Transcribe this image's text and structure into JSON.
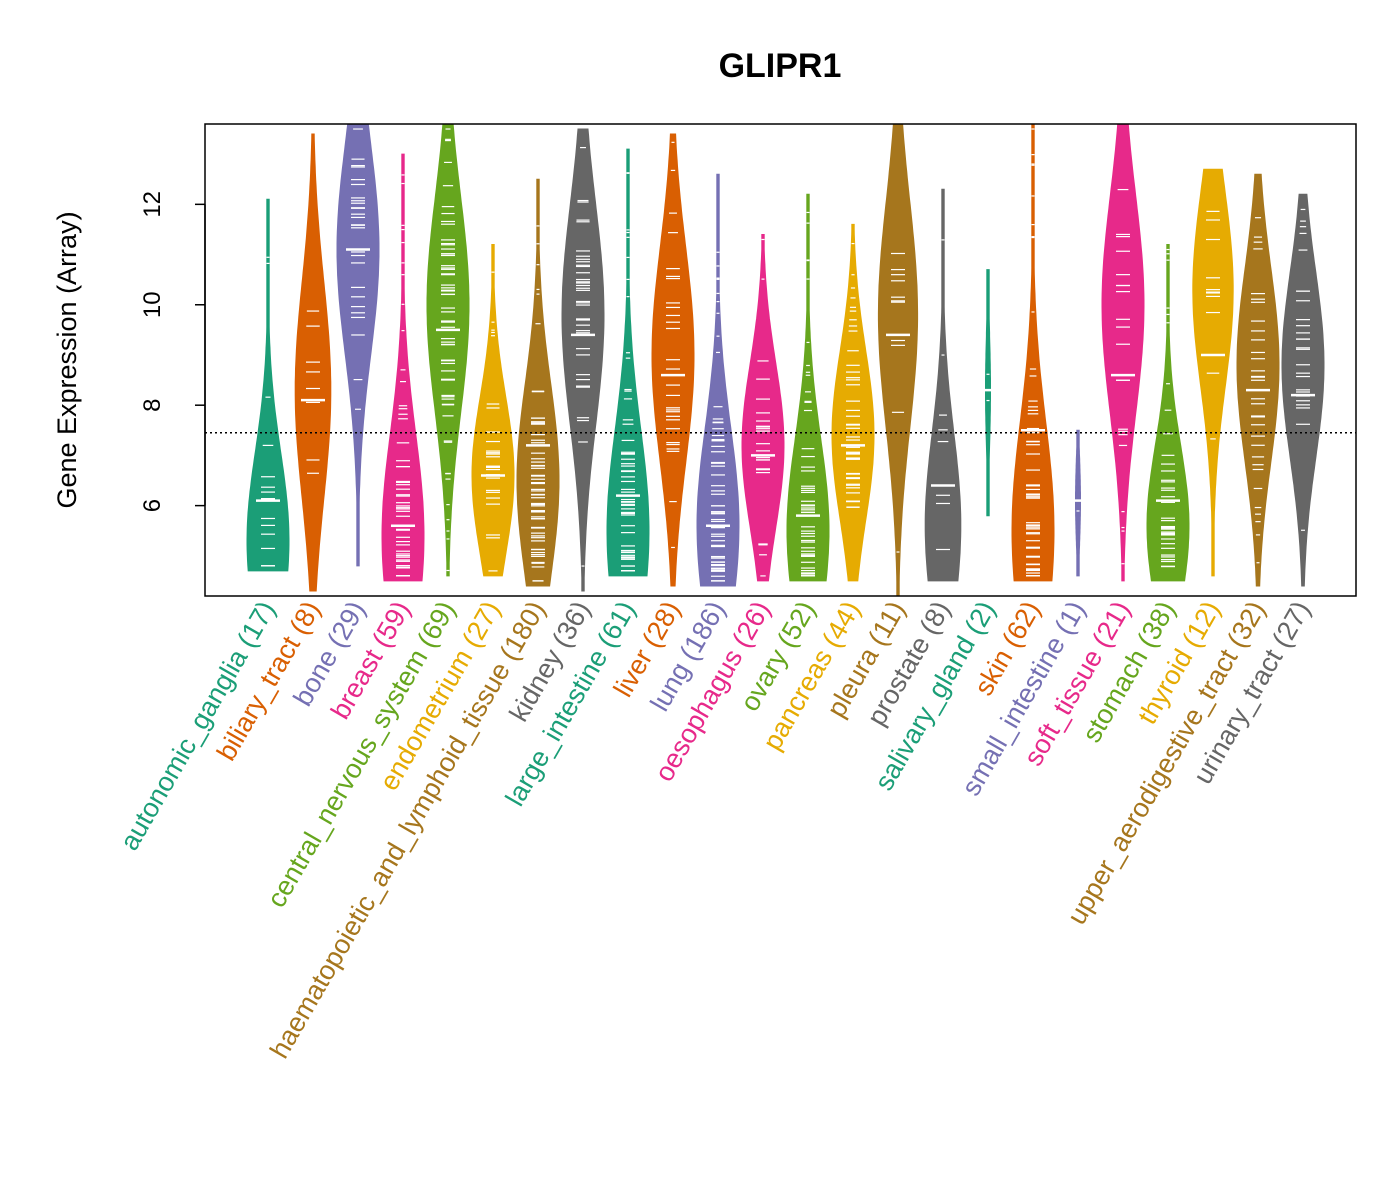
{
  "chart_data": {
    "type": "violin",
    "title": "GLIPR1",
    "xlabel": "",
    "ylabel": "Gene Expression (Array)",
    "ylim": [
      4.2,
      13.6
    ],
    "yticks": [
      6,
      8,
      10,
      12
    ],
    "reference_line": 7.45,
    "categories": [
      {
        "name": "autonomic_ganglia",
        "n": 17,
        "label": "autonomic_ganglia (17)",
        "color": "#1b9e77",
        "min": 4.7,
        "max": 12.1,
        "median": 6.1,
        "mode": 5.3
      },
      {
        "name": "biliary_tract",
        "n": 8,
        "label": "biliary_tract (8)",
        "color": "#d95f02",
        "min": 4.3,
        "max": 13.4,
        "median": 8.1,
        "mode": 8.3
      },
      {
        "name": "bone",
        "n": 29,
        "label": "bone (29)",
        "color": "#7570b3",
        "min": 4.8,
        "max": 13.6,
        "median": 11.1,
        "mode": 11.1
      },
      {
        "name": "breast",
        "n": 59,
        "label": "breast (59)",
        "color": "#e7298a",
        "min": 4.5,
        "max": 13.0,
        "median": 5.6,
        "mode": 5.4
      },
      {
        "name": "central_nervous_system",
        "n": 69,
        "label": "central_nervous_system (69)",
        "color": "#66a61e",
        "min": 4.6,
        "max": 13.6,
        "median": 9.5,
        "mode": 10.0
      },
      {
        "name": "endometrium",
        "n": 27,
        "label": "endometrium (27)",
        "color": "#e6ab02",
        "min": 4.6,
        "max": 11.2,
        "median": 6.6,
        "mode": 6.6
      },
      {
        "name": "haematopoietic_and_lymphoid_tissue",
        "n": 180,
        "label": "haematopoietic_and_lymphoid_tissue (180)",
        "color": "#a6761d",
        "min": 4.4,
        "max": 12.5,
        "median": 7.2,
        "mode": 6.5
      },
      {
        "name": "kidney",
        "n": 36,
        "label": "kidney (36)",
        "color": "#666666",
        "min": 4.3,
        "max": 13.5,
        "median": 9.4,
        "mode": 9.8
      },
      {
        "name": "large_intestine",
        "n": 61,
        "label": "large_intestine (61)",
        "color": "#1b9e77",
        "min": 4.6,
        "max": 13.1,
        "median": 6.2,
        "mode": 5.5
      },
      {
        "name": "liver",
        "n": 28,
        "label": "liver (28)",
        "color": "#d95f02",
        "min": 4.4,
        "max": 13.4,
        "median": 8.6,
        "mode": 9.0
      },
      {
        "name": "lung",
        "n": 186,
        "label": "lung (186)",
        "color": "#7570b3",
        "min": 4.4,
        "max": 12.6,
        "median": 5.6,
        "mode": 5.6
      },
      {
        "name": "oesophagus",
        "n": 26,
        "label": "oesophagus (26)",
        "color": "#e7298a",
        "min": 4.5,
        "max": 11.4,
        "median": 7.0,
        "mode": 7.2
      },
      {
        "name": "ovary",
        "n": 52,
        "label": "ovary (52)",
        "color": "#66a61e",
        "min": 4.5,
        "max": 12.2,
        "median": 5.8,
        "mode": 5.5
      },
      {
        "name": "pancreas",
        "n": 44,
        "label": "pancreas (44)",
        "color": "#e6ab02",
        "min": 4.5,
        "max": 11.6,
        "median": 7.2,
        "mode": 7.4
      },
      {
        "name": "pleura",
        "n": 11,
        "label": "pleura (11)",
        "color": "#a6761d",
        "min": 4.2,
        "max": 13.6,
        "median": 9.4,
        "mode": 9.8
      },
      {
        "name": "prostate",
        "n": 8,
        "label": "prostate (8)",
        "color": "#666666",
        "min": 4.5,
        "max": 12.3,
        "median": 6.4,
        "mode": 5.6
      },
      {
        "name": "salivary_gland",
        "n": 2,
        "label": "salivary_gland (2)",
        "color": "#1b9e77",
        "min": 5.8,
        "max": 10.7,
        "median": 8.3,
        "mode": 8.3
      },
      {
        "name": "skin",
        "n": 62,
        "label": "skin (62)",
        "color": "#d95f02",
        "min": 4.5,
        "max": 13.6,
        "median": 7.5,
        "mode": 5.5
      },
      {
        "name": "small_intestine",
        "n": 1,
        "label": "small_intestine (1)",
        "color": "#7570b3",
        "min": 4.6,
        "max": 7.5,
        "median": 6.1,
        "mode": 6.1
      },
      {
        "name": "soft_tissue",
        "n": 21,
        "label": "soft_tissue (21)",
        "color": "#e7298a",
        "min": 4.5,
        "max": 13.6,
        "median": 8.6,
        "mode": 10.0
      },
      {
        "name": "stomach",
        "n": 38,
        "label": "stomach (38)",
        "color": "#66a61e",
        "min": 4.5,
        "max": 11.2,
        "median": 6.1,
        "mode": 5.6
      },
      {
        "name": "thyroid",
        "n": 12,
        "label": "thyroid (12)",
        "color": "#e6ab02",
        "min": 4.6,
        "max": 12.7,
        "median": 9.0,
        "mode": 10.3
      },
      {
        "name": "upper_aerodigestive_tract",
        "n": 32,
        "label": "upper_aerodigestive_tract (32)",
        "color": "#a6761d",
        "min": 4.4,
        "max": 12.6,
        "median": 8.3,
        "mode": 8.8
      },
      {
        "name": "urinary_tract",
        "n": 27,
        "label": "urinary_tract (27)",
        "color": "#666666",
        "min": 4.4,
        "max": 12.2,
        "median": 8.2,
        "mode": 8.8
      }
    ]
  }
}
